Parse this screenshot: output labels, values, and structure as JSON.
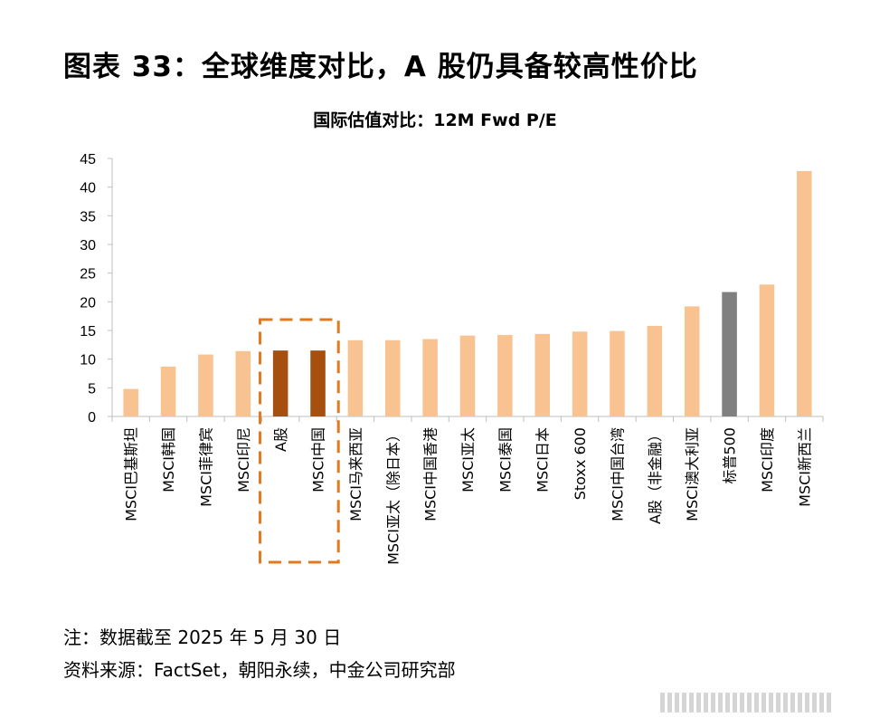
{
  "figure_title": "图表 33：全球维度对比，A 股仍具备较高性价比",
  "notes": {
    "date_note": "注：数据截至 2025 年 5 月 30 日",
    "source": "资料来源：FactSet，朝阳永续，中金公司研究部"
  },
  "colors": {
    "default_bar": "#F9C291",
    "highlight_bar": "#A5500F",
    "benchmark_bar": "#808080",
    "highlight_box": "#E07A20",
    "axis": "#BFBFBF"
  },
  "chart_data": {
    "type": "bar",
    "title": "国际估值对比：12M Fwd P/E",
    "xlabel": "",
    "ylabel": "",
    "ylim": [
      0,
      45
    ],
    "yticks": [
      0,
      5,
      10,
      15,
      20,
      25,
      30,
      35,
      40,
      45
    ],
    "grid": false,
    "legend": "none",
    "categories": [
      "MSCI巴基斯坦",
      "MSCI韩国",
      "MSCI菲律宾",
      "MSCI印尼",
      "A股",
      "MSCI中国",
      "MSCI马来西亚",
      "MSCI亚太（除日本）",
      "MSCI中国香港",
      "MSCI亚太",
      "MSCI泰国",
      "MSCI日本",
      "Stoxx 600",
      "MSCI中国台湾",
      "A股（非金融）",
      "MSCI澳大利亚",
      "标普500",
      "MSCI印度",
      "MSCI新西兰"
    ],
    "values": [
      4.8,
      8.7,
      10.8,
      11.4,
      11.5,
      11.5,
      13.3,
      13.3,
      13.5,
      14.1,
      14.2,
      14.4,
      14.8,
      14.9,
      15.8,
      19.2,
      21.7,
      23.0,
      42.8
    ],
    "bar_colors": [
      "default",
      "default",
      "default",
      "default",
      "highlight",
      "highlight",
      "default",
      "default",
      "default",
      "default",
      "default",
      "default",
      "default",
      "default",
      "default",
      "default",
      "benchmark",
      "default",
      "default"
    ],
    "highlighted_categories": [
      "A股",
      "MSCI中国"
    ]
  }
}
